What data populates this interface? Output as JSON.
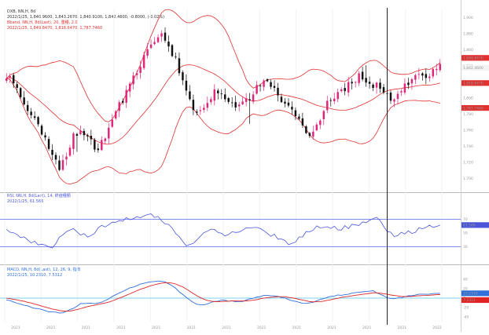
{
  "chart_data": {
    "type": "candlestick",
    "main_panel": {
      "instrument": "DXB, NN,H, 8d",
      "ohlc_readout": "2022/1/25, 1,840.9600, 1,843.2670, 1,840.9100, 1,842.4600, -0.8000, (-0.02%)",
      "band_legend": "Bband, NN,H, 8d(Last), 20, 重種, 2.0",
      "band_readout": "2022/1/25, 1,849.8470, 1,818.6470, 1,787.7460",
      "yaxis_ticks": [
        "1,900",
        "1,880",
        "1,860",
        "1,840",
        "1,820",
        "1,800",
        "1,780",
        "1,760",
        "1,740",
        "1,720",
        "1,700"
      ],
      "ylim": [
        1690,
        1910
      ],
      "last_price_label": "1,842.4600",
      "upper_band_label": "1,849.8470",
      "middle_band_label": "1,818.6470",
      "lower_band_label": "1,787.7460",
      "last_price": 1842.46,
      "upper_band_last": 1849.847,
      "middle_band_last": 1818.647,
      "lower_band_last": 1787.746,
      "close_path": [
        1828,
        1818,
        1806,
        1790,
        1776,
        1758,
        1742,
        1722,
        1714,
        1732,
        1754,
        1764,
        1752,
        1736,
        1742,
        1762,
        1782,
        1796,
        1810,
        1828,
        1846,
        1858,
        1870,
        1880,
        1864,
        1846,
        1820,
        1796,
        1782,
        1788,
        1800,
        1812,
        1806,
        1796,
        1790,
        1794,
        1802,
        1812,
        1822,
        1816,
        1804,
        1794,
        1784,
        1772,
        1764,
        1752,
        1770,
        1790,
        1796,
        1806,
        1812,
        1820,
        1828,
        1822,
        1818,
        1812,
        1804,
        1800,
        1808,
        1816,
        1822,
        1830,
        1828,
        1834,
        1842
      ]
    },
    "rsi_panel": {
      "legend": "RSI, NN,H, 8d(Last), 14, 終値種類",
      "readout": "2022/1/25, 61.566",
      "value_label": "61.566",
      "last_value": 61.566,
      "upper_level": 70,
      "lower_level": 30,
      "ylim": [
        10,
        90
      ],
      "values": [
        56,
        50,
        44,
        40,
        36,
        32,
        30,
        30,
        44,
        52,
        54,
        48,
        46,
        52,
        58,
        64,
        66,
        68,
        70,
        72,
        74,
        76,
        74,
        70,
        60,
        48,
        36,
        32,
        40,
        48,
        54,
        52,
        48,
        50,
        52,
        56,
        58,
        56,
        52,
        48,
        44,
        38,
        34,
        40,
        50,
        56,
        58,
        60,
        58,
        56,
        58,
        60,
        62,
        66,
        72,
        70,
        54,
        46,
        48,
        50,
        52,
        56,
        58,
        60,
        62
      ]
    },
    "macd_panel": {
      "legend": "MACD, NN,H, 8d(Last), 12, 26, 9, 指数",
      "readout": "2022/1/25, 10.2310, 7.5312",
      "macd_label": "10.2310",
      "signal_label": "7.5312",
      "macd_last": 10.231,
      "signal_last": 7.5312,
      "ylim": [
        -50,
        50
      ],
      "macd": [
        -4,
        -8,
        -12,
        -16,
        -20,
        -24,
        -28,
        -30,
        -32,
        -28,
        -20,
        -12,
        -10,
        -12,
        -8,
        -2,
        6,
        14,
        20,
        26,
        30,
        34,
        36,
        36,
        30,
        20,
        8,
        -4,
        -12,
        -14,
        -10,
        -6,
        -4,
        -6,
        -8,
        -6,
        -2,
        2,
        6,
        6,
        4,
        0,
        -4,
        -8,
        -12,
        -10,
        -4,
        0,
        4,
        6,
        8,
        10,
        12,
        14,
        16,
        10,
        2,
        -2,
        0,
        4,
        6,
        8,
        8,
        10,
        10
      ],
      "signal": [
        0,
        -2,
        -5,
        -8,
        -12,
        -16,
        -20,
        -24,
        -27,
        -28,
        -26,
        -22,
        -18,
        -15,
        -12,
        -9,
        -4,
        2,
        8,
        14,
        20,
        25,
        29,
        32,
        33,
        30,
        24,
        15,
        6,
        -2,
        -6,
        -8,
        -7,
        -6,
        -6,
        -6,
        -5,
        -3,
        0,
        2,
        3,
        3,
        1,
        -2,
        -5,
        -8,
        -8,
        -6,
        -3,
        0,
        3,
        5,
        7,
        9,
        11,
        11,
        9,
        6,
        4,
        3,
        4,
        5,
        6,
        7,
        7.5
      ]
    },
    "x_tick_labels": [
      "2021",
      "2021",
      "2021",
      "2021",
      "2021",
      "2021",
      "2021",
      "2021",
      "2021",
      "2021",
      "2021",
      "2021",
      "2022"
    ],
    "crosshair_index": 56,
    "colors": {
      "up": "#e0257a",
      "down": "#111111",
      "band": "#e03030",
      "rsi": "#4a55d8",
      "macd": "#3070d8",
      "signal": "#e02424",
      "guide": "#5566ee"
    }
  }
}
